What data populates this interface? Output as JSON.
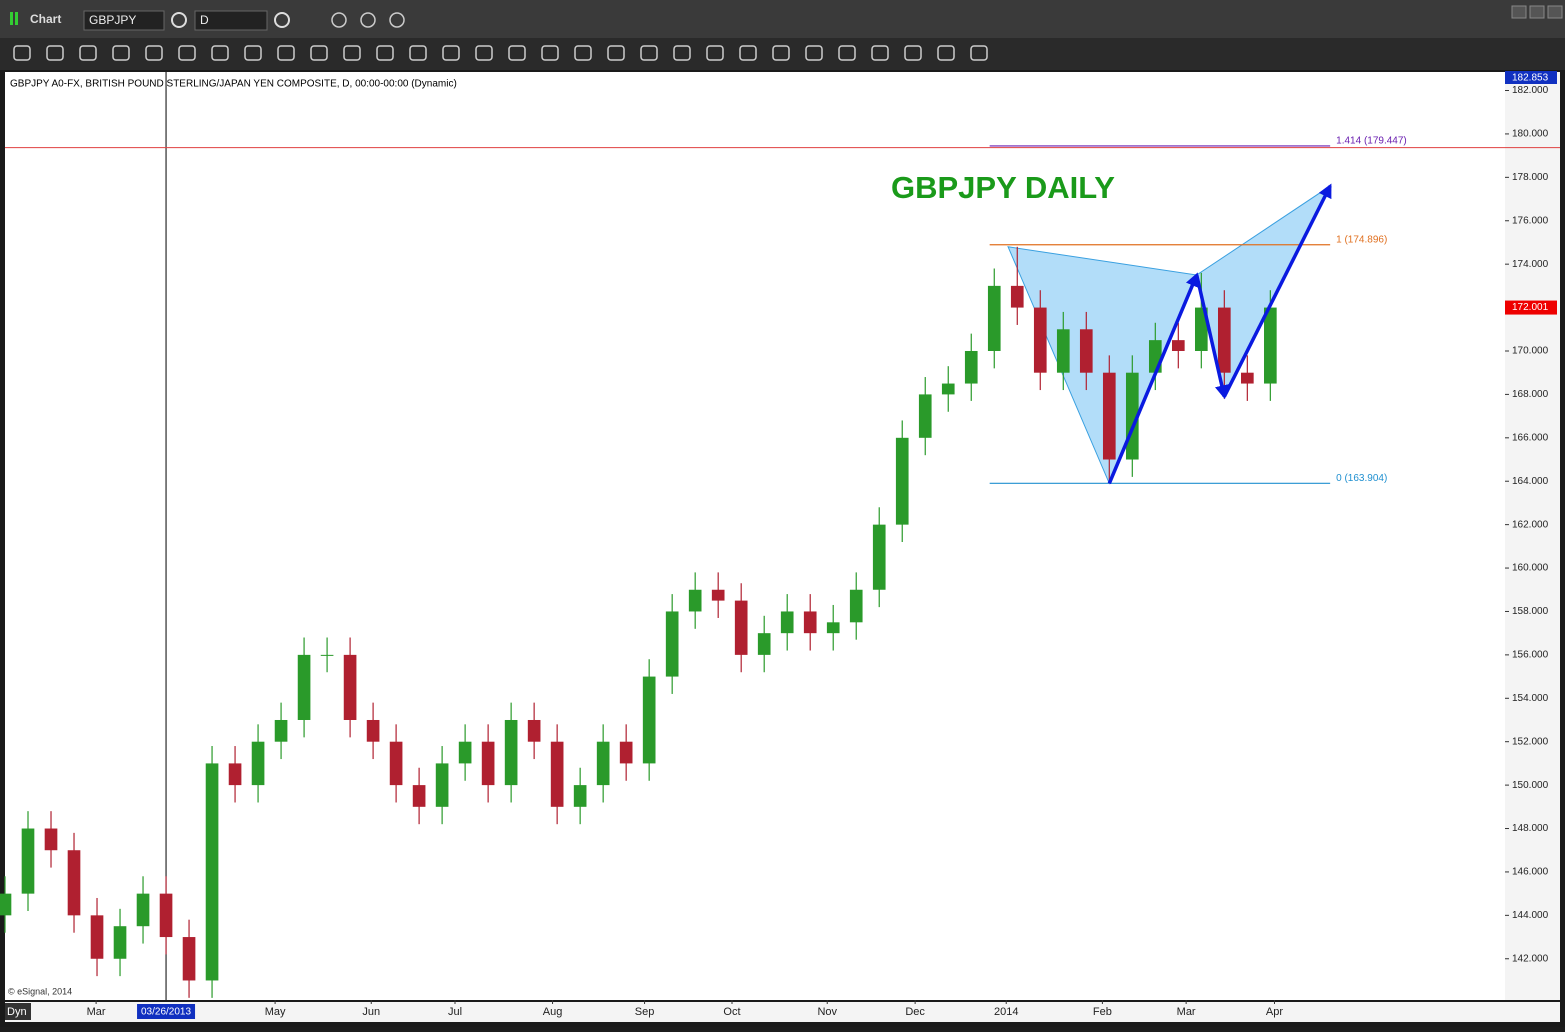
{
  "toolbar": {
    "app": "Chart",
    "symbol": "GBPJPY",
    "interval": "D",
    "mode": "Dyn"
  },
  "chart_data": {
    "type": "candlestick",
    "header": "GBPJPY A0-FX, BRITISH POUND STERLING/JAPAN YEN COMPOSITE, D, 00:00-00:00 (Dynamic)",
    "title": "GBPJPY DAILY",
    "footer": "© eSignal, 2014",
    "x": [
      0,
      5,
      10,
      15,
      20,
      25,
      30,
      35,
      40,
      45,
      50,
      55,
      60,
      65,
      70,
      75,
      80,
      85,
      90,
      95,
      100,
      105,
      110,
      115,
      120,
      125,
      130,
      135,
      140,
      145,
      150,
      155,
      160,
      165,
      170,
      175,
      180,
      185,
      190,
      195,
      200,
      205,
      210,
      215,
      220,
      225,
      230,
      235,
      240,
      245,
      250,
      255,
      260,
      265,
      270,
      275
    ],
    "open": [
      144,
      145,
      148,
      147,
      144,
      142,
      143.5,
      145,
      143,
      141,
      151,
      150,
      152,
      153,
      156,
      156,
      153,
      152,
      150,
      149,
      151,
      152,
      150,
      153,
      152,
      149,
      150,
      152,
      151,
      155,
      158,
      159,
      158.5,
      156,
      157,
      158,
      157,
      157.5,
      159,
      162,
      166,
      168,
      168.5,
      170,
      173,
      172,
      169,
      171,
      169,
      165,
      169,
      170.5,
      170,
      172,
      169,
      168.5
    ],
    "high": [
      145.8,
      148.8,
      148.8,
      147.8,
      144.8,
      144.3,
      145.8,
      145.8,
      143.8,
      151.8,
      151.8,
      152.8,
      153.8,
      156.8,
      156.8,
      156.8,
      153.8,
      152.8,
      150.8,
      151.8,
      152.8,
      152.8,
      153.8,
      153.8,
      152.8,
      150.8,
      152.8,
      152.8,
      155.8,
      158.8,
      159.8,
      159.8,
      159.3,
      157.8,
      158.8,
      158.8,
      158.3,
      159.8,
      162.8,
      166.8,
      168.8,
      169.3,
      170.8,
      173.8,
      174.8,
      172.8,
      171.8,
      171.8,
      169.8,
      169.8,
      171.3,
      171.3,
      173.6,
      172.8,
      169.8,
      172.8
    ],
    "low": [
      143.2,
      144.2,
      146.2,
      143.2,
      141.2,
      141.2,
      142.7,
      142.2,
      140.2,
      140.2,
      149.2,
      149.2,
      151.2,
      152.2,
      155.2,
      152.2,
      151.2,
      149.2,
      148.2,
      148.2,
      150.2,
      149.2,
      149.2,
      151.2,
      148.2,
      148.2,
      149.2,
      150.2,
      150.2,
      154.2,
      157.2,
      157.7,
      155.2,
      155.2,
      156.2,
      156.2,
      156.2,
      156.7,
      158.2,
      161.2,
      165.2,
      167.2,
      167.7,
      169.2,
      171.2,
      168.2,
      168.2,
      168.2,
      163.9,
      164.2,
      168.2,
      169.2,
      169.2,
      167.8,
      167.7,
      167.7
    ],
    "close": [
      145,
      148,
      147,
      144,
      142,
      143.5,
      145,
      143,
      141,
      151,
      150,
      152,
      153,
      156,
      156,
      153,
      152,
      150,
      149,
      151,
      152,
      150,
      153,
      152,
      149,
      150,
      152,
      151,
      155,
      158,
      159,
      158.5,
      156,
      157,
      158,
      157,
      157.5,
      159,
      162,
      166,
      168,
      168.5,
      170,
      173,
      172,
      169,
      171,
      169,
      165,
      169,
      170.5,
      170,
      172,
      169,
      168.5,
      172
    ],
    "up_color": "#2a9a2a",
    "down_color": "#b02030",
    "xlim": [
      0,
      326
    ],
    "xticks": [
      {
        "value": 19.8,
        "label": "Mar"
      },
      {
        "value": 58.7,
        "label": "May"
      },
      {
        "value": 79.6,
        "label": "Jun"
      },
      {
        "value": 97.8,
        "label": "Jul"
      },
      {
        "value": 119,
        "label": "Aug"
      },
      {
        "value": 139,
        "label": "Sep"
      },
      {
        "value": 158,
        "label": "Oct"
      },
      {
        "value": 178.7,
        "label": "Nov"
      },
      {
        "value": 197.8,
        "label": "Dec"
      },
      {
        "value": 217.6,
        "label": "2014"
      },
      {
        "value": 238.5,
        "label": "Feb"
      },
      {
        "value": 256.7,
        "label": "Mar"
      },
      {
        "value": 275.9,
        "label": "Apr"
      }
    ],
    "ylim": [
      140.1,
      182.853
    ],
    "yticks": [
      {
        "value": 142,
        "label": "142.000"
      },
      {
        "value": 144,
        "label": "144.000"
      },
      {
        "value": 146,
        "label": "146.000"
      },
      {
        "value": 148,
        "label": "148.000"
      },
      {
        "value": 150,
        "label": "150.000"
      },
      {
        "value": 152,
        "label": "152.000"
      },
      {
        "value": 154,
        "label": "154.000"
      },
      {
        "value": 156,
        "label": "156.000"
      },
      {
        "value": 158,
        "label": "158.000"
      },
      {
        "value": 160,
        "label": "160.000"
      },
      {
        "value": 162,
        "label": "162.000"
      },
      {
        "value": 164,
        "label": "164.000"
      },
      {
        "value": 166,
        "label": "166.000"
      },
      {
        "value": 168,
        "label": "168.000"
      },
      {
        "value": 170,
        "label": "170.000"
      },
      {
        "value": 172,
        "label": "172.000"
      },
      {
        "value": 174,
        "label": "174.000"
      },
      {
        "value": 176,
        "label": "176.000"
      },
      {
        "value": 178,
        "label": "178.000"
      },
      {
        "value": 180,
        "label": "180.000"
      },
      {
        "value": 182,
        "label": "182.000"
      }
    ],
    "last_price": 172.001,
    "crosshair": {
      "x": 35,
      "x_label": "03/26/2013",
      "y": 179.37
    },
    "levels": [
      {
        "label": "1.414 (179.447)",
        "value": 179.447,
        "color": "#6a1fb0"
      },
      {
        "label": "1 (174.896)",
        "value": 174.896,
        "color": "#e07020"
      },
      {
        "label": "0 (163.904)",
        "value": 163.904,
        "color": "#2090d0"
      }
    ],
    "levels_x": [
      214,
      288
    ],
    "pattern": {
      "x": [
        218,
        240,
        259,
        265,
        288
      ],
      "y": [
        174.8,
        163.9,
        173.5,
        167.9,
        177.6
      ],
      "fill": "#9fd4f7",
      "arrow_color": "#0a1ae0"
    }
  }
}
